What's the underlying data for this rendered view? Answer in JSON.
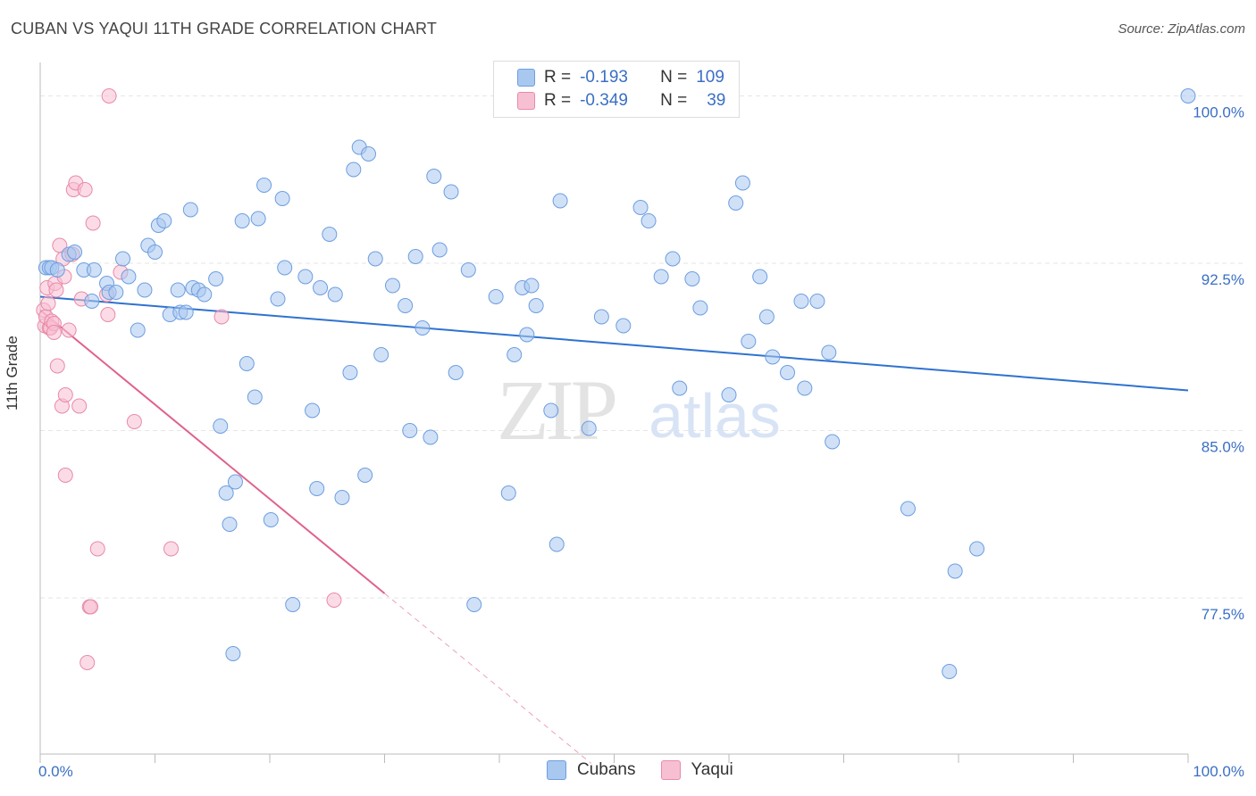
{
  "header": {
    "title": "CUBAN VS YAQUI 11TH GRADE CORRELATION CHART",
    "source": "Source: ZipAtlas.com"
  },
  "watermark": {
    "zip": "ZIP",
    "atlas": "atlas"
  },
  "legend": {
    "rows": [
      {
        "r_label": "R =",
        "r_value": "-0.193",
        "n_label": "N =",
        "n_value": "109",
        "color": "#a9c8f0"
      },
      {
        "r_label": "R =",
        "r_value": "-0.349",
        "n_label": "N =",
        "n_value": "39",
        "color": "#f5b8cb"
      }
    ]
  },
  "bottom_legend": {
    "cubans": "Cubans",
    "yaqui": "Yaqui"
  },
  "colors": {
    "cuban_fill": "#a9c8f0",
    "cuban_stroke": "#6d9ee0",
    "cuban_line": "#2f72d0",
    "yaqui_fill": "#f7c0d2",
    "yaqui_stroke": "#e98aa8",
    "yaqui_line": "#e0628a",
    "tick_label": "#3a6fc4",
    "grid": "#e6e6e6"
  },
  "chart_data": {
    "type": "scatter",
    "title": "CUBAN VS YAQUI 11TH GRADE CORRELATION CHART",
    "xlabel": "",
    "ylabel": "11th Grade",
    "xlim": [
      0,
      100
    ],
    "ylim": [
      70.5,
      101.5
    ],
    "x_tick_labels": [
      "0.0%",
      "100.0%"
    ],
    "y_ticks": [
      100,
      92.5,
      85,
      77.5
    ],
    "y_tick_labels": [
      "100.0%",
      "92.5%",
      "85.0%",
      "77.5%"
    ],
    "grid": true,
    "series": [
      {
        "name": "Cubans",
        "points": [
          [
            0.5,
            92.3
          ],
          [
            0.8,
            92.3
          ],
          [
            1.0,
            92.3
          ],
          [
            1.5,
            92.2
          ],
          [
            2.5,
            92.9
          ],
          [
            3.0,
            93.0
          ],
          [
            3.8,
            92.2
          ],
          [
            4.5,
            90.8
          ],
          [
            4.7,
            92.2
          ],
          [
            5.8,
            91.6
          ],
          [
            6.0,
            91.2
          ],
          [
            6.6,
            91.2
          ],
          [
            7.2,
            92.7
          ],
          [
            7.7,
            91.9
          ],
          [
            8.5,
            89.5
          ],
          [
            9.1,
            91.3
          ],
          [
            9.4,
            93.3
          ],
          [
            10.0,
            93.0
          ],
          [
            10.3,
            94.2
          ],
          [
            10.8,
            94.4
          ],
          [
            11.3,
            90.2
          ],
          [
            12.0,
            91.3
          ],
          [
            12.2,
            90.3
          ],
          [
            12.7,
            90.3
          ],
          [
            13.1,
            94.9
          ],
          [
            13.3,
            91.4
          ],
          [
            13.8,
            91.3
          ],
          [
            14.3,
            91.1
          ],
          [
            15.3,
            91.8
          ],
          [
            15.7,
            85.2
          ],
          [
            16.2,
            82.2
          ],
          [
            16.5,
            80.8
          ],
          [
            16.8,
            75.0
          ],
          [
            17.0,
            82.7
          ],
          [
            17.6,
            94.4
          ],
          [
            18.0,
            88.0
          ],
          [
            18.7,
            86.5
          ],
          [
            19.0,
            94.5
          ],
          [
            19.5,
            96.0
          ],
          [
            20.1,
            81.0
          ],
          [
            20.7,
            90.9
          ],
          [
            21.1,
            95.4
          ],
          [
            21.3,
            92.3
          ],
          [
            22.0,
            77.2
          ],
          [
            23.1,
            91.9
          ],
          [
            23.7,
            85.9
          ],
          [
            24.1,
            82.4
          ],
          [
            24.4,
            91.4
          ],
          [
            25.2,
            93.8
          ],
          [
            25.7,
            91.1
          ],
          [
            26.3,
            82.0
          ],
          [
            27.0,
            87.6
          ],
          [
            27.3,
            96.7
          ],
          [
            27.8,
            97.7
          ],
          [
            28.3,
            83.0
          ],
          [
            28.6,
            97.4
          ],
          [
            29.2,
            92.7
          ],
          [
            29.7,
            88.4
          ],
          [
            30.7,
            91.5
          ],
          [
            31.8,
            90.6
          ],
          [
            32.2,
            85.0
          ],
          [
            32.7,
            92.8
          ],
          [
            33.3,
            89.6
          ],
          [
            34.0,
            84.7
          ],
          [
            34.3,
            96.4
          ],
          [
            34.8,
            93.1
          ],
          [
            35.8,
            95.7
          ],
          [
            36.2,
            87.6
          ],
          [
            37.3,
            92.2
          ],
          [
            37.8,
            77.2
          ],
          [
            39.7,
            91.0
          ],
          [
            40.8,
            82.2
          ],
          [
            41.3,
            88.4
          ],
          [
            42.0,
            91.4
          ],
          [
            42.4,
            89.3
          ],
          [
            42.8,
            91.5
          ],
          [
            43.2,
            90.6
          ],
          [
            44.5,
            85.9
          ],
          [
            45.0,
            79.9
          ],
          [
            45.3,
            95.3
          ],
          [
            47.8,
            85.1
          ],
          [
            48.9,
            90.1
          ],
          [
            50.8,
            89.7
          ],
          [
            52.3,
            95.0
          ],
          [
            53.0,
            94.4
          ],
          [
            54.1,
            91.9
          ],
          [
            55.1,
            92.7
          ],
          [
            55.7,
            86.9
          ],
          [
            56.8,
            91.8
          ],
          [
            57.5,
            90.5
          ],
          [
            60.0,
            86.6
          ],
          [
            60.6,
            95.2
          ],
          [
            61.2,
            96.1
          ],
          [
            61.7,
            89.0
          ],
          [
            62.7,
            91.9
          ],
          [
            63.3,
            90.1
          ],
          [
            63.8,
            88.3
          ],
          [
            65.1,
            87.6
          ],
          [
            66.3,
            90.8
          ],
          [
            66.6,
            86.9
          ],
          [
            67.7,
            90.8
          ],
          [
            68.7,
            88.5
          ],
          [
            69.0,
            84.5
          ],
          [
            75.6,
            81.5
          ],
          [
            79.2,
            74.2
          ],
          [
            79.7,
            78.7
          ],
          [
            81.6,
            79.7
          ],
          [
            100.0,
            100.0
          ]
        ]
      },
      {
        "name": "Yaqui",
        "points": [
          [
            0.3,
            90.4
          ],
          [
            0.4,
            89.7
          ],
          [
            0.5,
            90.1
          ],
          [
            0.6,
            91.4
          ],
          [
            0.7,
            90.7
          ],
          [
            0.8,
            89.6
          ],
          [
            0.9,
            89.6
          ],
          [
            1.0,
            89.9
          ],
          [
            1.2,
            89.8
          ],
          [
            1.2,
            89.4
          ],
          [
            1.3,
            91.6
          ],
          [
            1.4,
            91.3
          ],
          [
            1.5,
            87.9
          ],
          [
            1.7,
            93.3
          ],
          [
            1.9,
            86.1
          ],
          [
            2.0,
            92.7
          ],
          [
            2.1,
            91.9
          ],
          [
            2.2,
            86.6
          ],
          [
            2.2,
            83.0
          ],
          [
            2.5,
            89.5
          ],
          [
            2.8,
            92.9
          ],
          [
            2.9,
            95.8
          ],
          [
            3.1,
            96.1
          ],
          [
            3.4,
            86.1
          ],
          [
            3.6,
            90.9
          ],
          [
            3.9,
            95.8
          ],
          [
            4.1,
            74.6
          ],
          [
            4.3,
            77.1
          ],
          [
            4.4,
            77.1
          ],
          [
            4.6,
            94.3
          ],
          [
            5.0,
            79.7
          ],
          [
            5.8,
            91.1
          ],
          [
            5.9,
            90.2
          ],
          [
            6.0,
            100.0
          ],
          [
            7.0,
            92.1
          ],
          [
            8.2,
            85.4
          ],
          [
            11.4,
            79.7
          ],
          [
            15.8,
            90.1
          ],
          [
            25.6,
            77.4
          ]
        ]
      }
    ],
    "trend_lines": [
      {
        "series": "Cubans",
        "x": [
          0,
          100
        ],
        "y": [
          91.0,
          86.8
        ]
      },
      {
        "series": "Yaqui",
        "x": [
          0,
          30
        ],
        "y": [
          90.4,
          77.7
        ],
        "dashed_extension_to_x": 48
      }
    ]
  }
}
